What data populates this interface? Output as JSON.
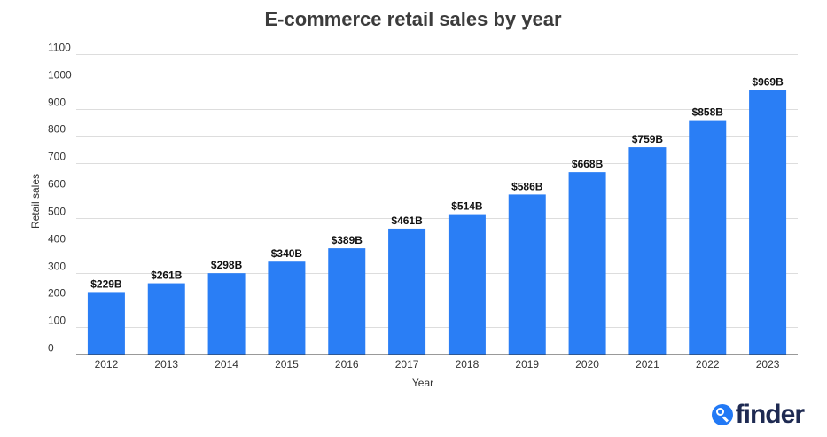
{
  "chart_data": {
    "type": "bar",
    "title": "E-commerce retail sales by year",
    "xlabel": "Year",
    "ylabel": "Retail sales",
    "ylim": [
      0,
      1100
    ],
    "yticks": [
      0,
      100,
      200,
      300,
      400,
      500,
      600,
      700,
      800,
      900,
      1000,
      1100
    ],
    "grid": true,
    "categories": [
      "2012",
      "2013",
      "2014",
      "2015",
      "2016",
      "2017",
      "2018",
      "2019",
      "2020",
      "2021",
      "2022",
      "2023"
    ],
    "values": [
      229,
      261,
      298,
      340,
      389,
      461,
      514,
      586,
      668,
      759,
      858,
      969
    ],
    "data_labels": [
      "$229B",
      "$261B",
      "$298B",
      "$340B",
      "$389B",
      "$461B",
      "$514B",
      "$586B",
      "$668B",
      "$759B",
      "$858B",
      "$969B"
    ],
    "bar_color": "#2a7ef5"
  },
  "brand": {
    "wordmark": "finder",
    "icon": "search-icon",
    "color": "#2279f5",
    "text_color": "#1e2a52"
  }
}
